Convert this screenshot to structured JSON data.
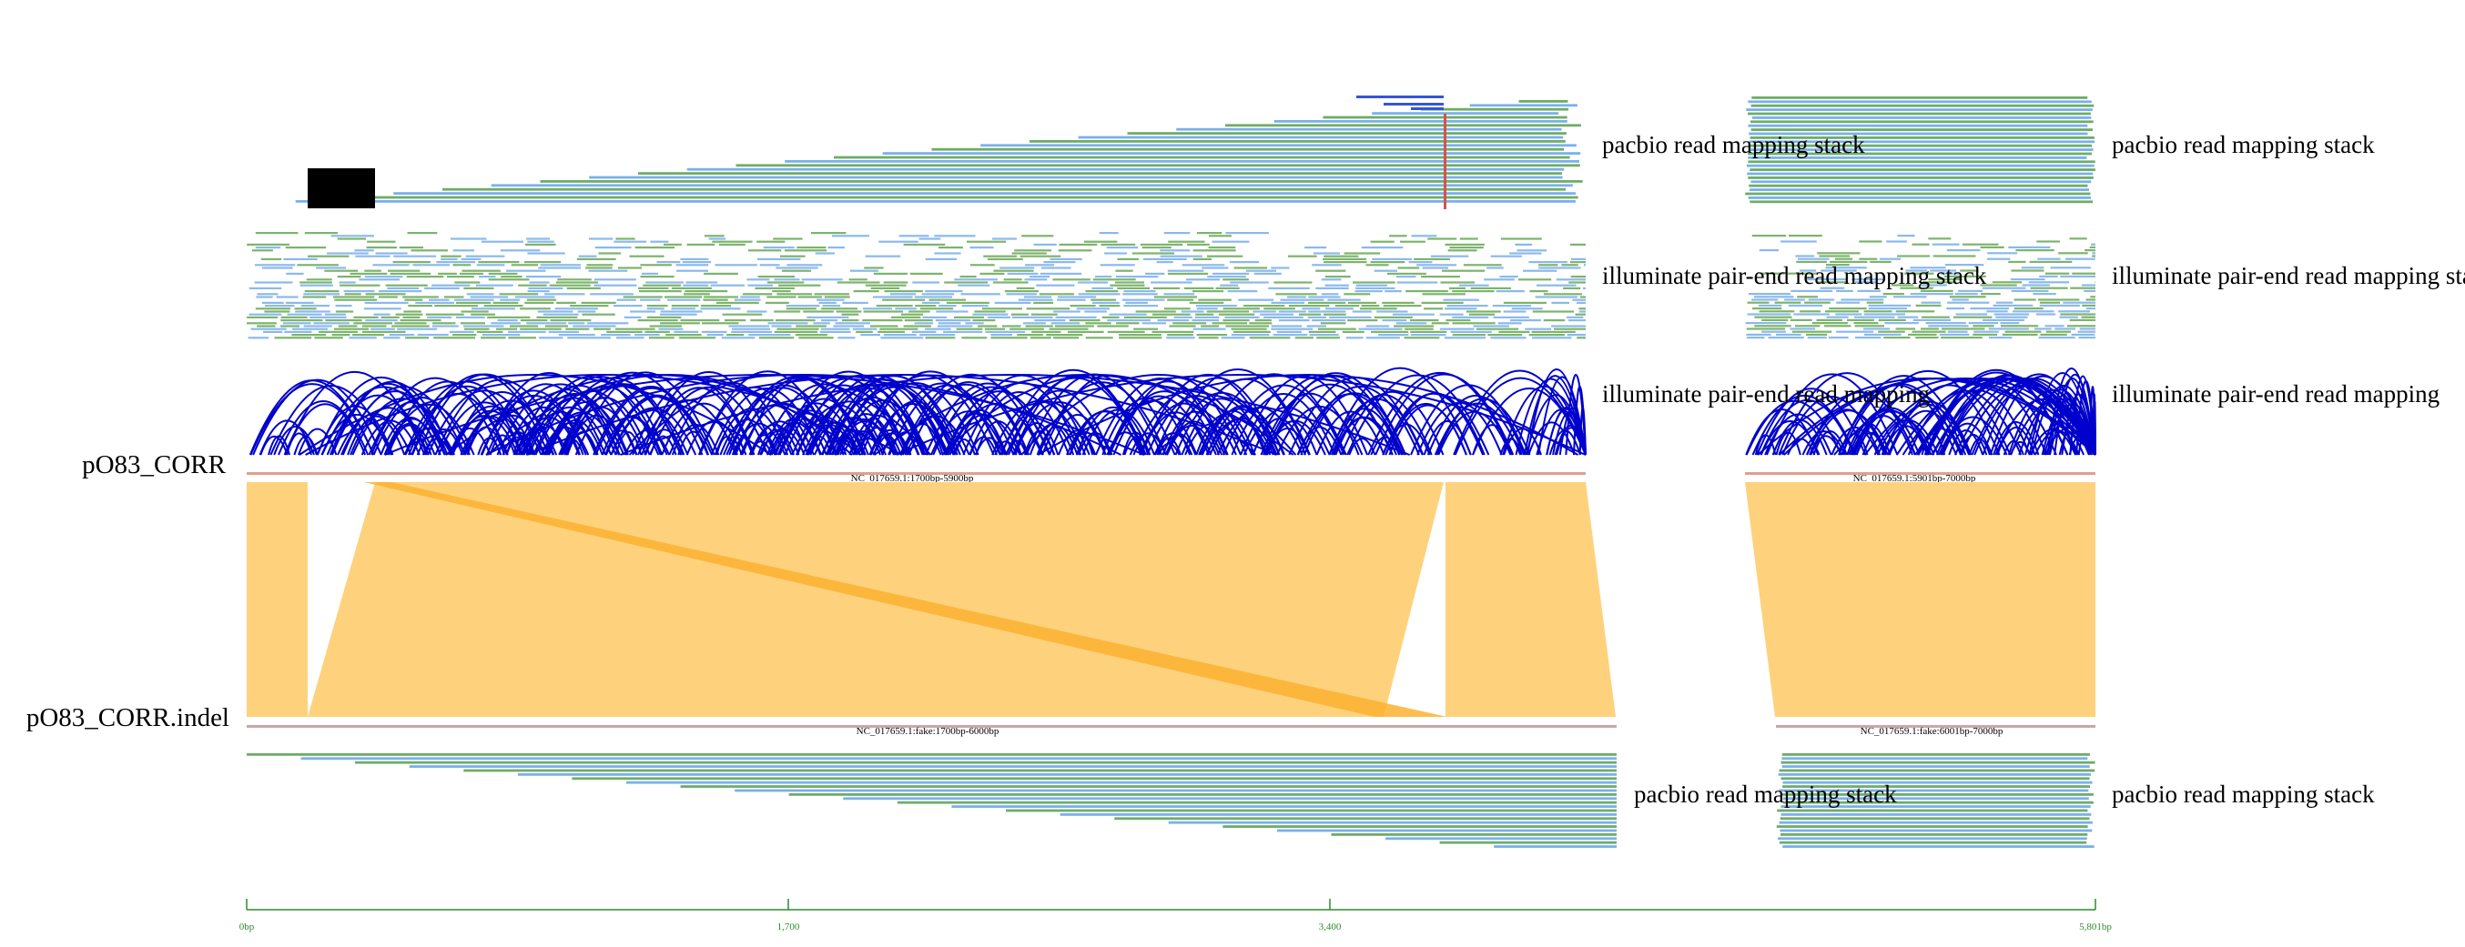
{
  "colors": {
    "pacbio_a": "#79b0ec",
    "pacbio_b": "#6ead67",
    "illumina_a": "#8ab9ec",
    "illumina_b": "#7cb46c",
    "arc": "#0000cc",
    "synteny": "#fed27c",
    "synteny_inverted": "#fbb131",
    "ref_line": "#e0a090",
    "query_line": "#c8a8a8",
    "axis": "#2e8b2e",
    "mismatch": "#d4544a",
    "clip": "#000000",
    "dup": "#3355dd"
  },
  "genomes": {
    "reference": {
      "name": "pO83_CORR"
    },
    "query": {
      "name": "pO83_CORR.indel"
    }
  },
  "segments": {
    "ref_left": "NC_017659.1:1700bp-5900bp",
    "ref_right": "NC_017659.1:5901bp-7000bp",
    "query_left": "NC_017659.1:fake:1700bp-6000bp",
    "query_right": "NC_017659.1:fake:6001bp-7000bp"
  },
  "tracks": {
    "ref_pacbio_left": "pacbio read mapping stack",
    "ref_pacbio_right": "pacbio read mapping stack",
    "ref_illumina_stack_left": "illuminate pair-end read mapping stack",
    "ref_illumina_stack_right": "illuminate pair-end read mapping stack",
    "ref_illumina_arc_left": "illuminate pair-end read mapping",
    "ref_illumina_arc_right": "illuminate pair-end read mapping",
    "query_pacbio_left": "pacbio read mapping stack",
    "query_pacbio_right": "pacbio read mapping stack"
  },
  "axis": {
    "ticks": [
      "0bp",
      "1,700",
      "3,400",
      "5,801bp"
    ]
  }
}
